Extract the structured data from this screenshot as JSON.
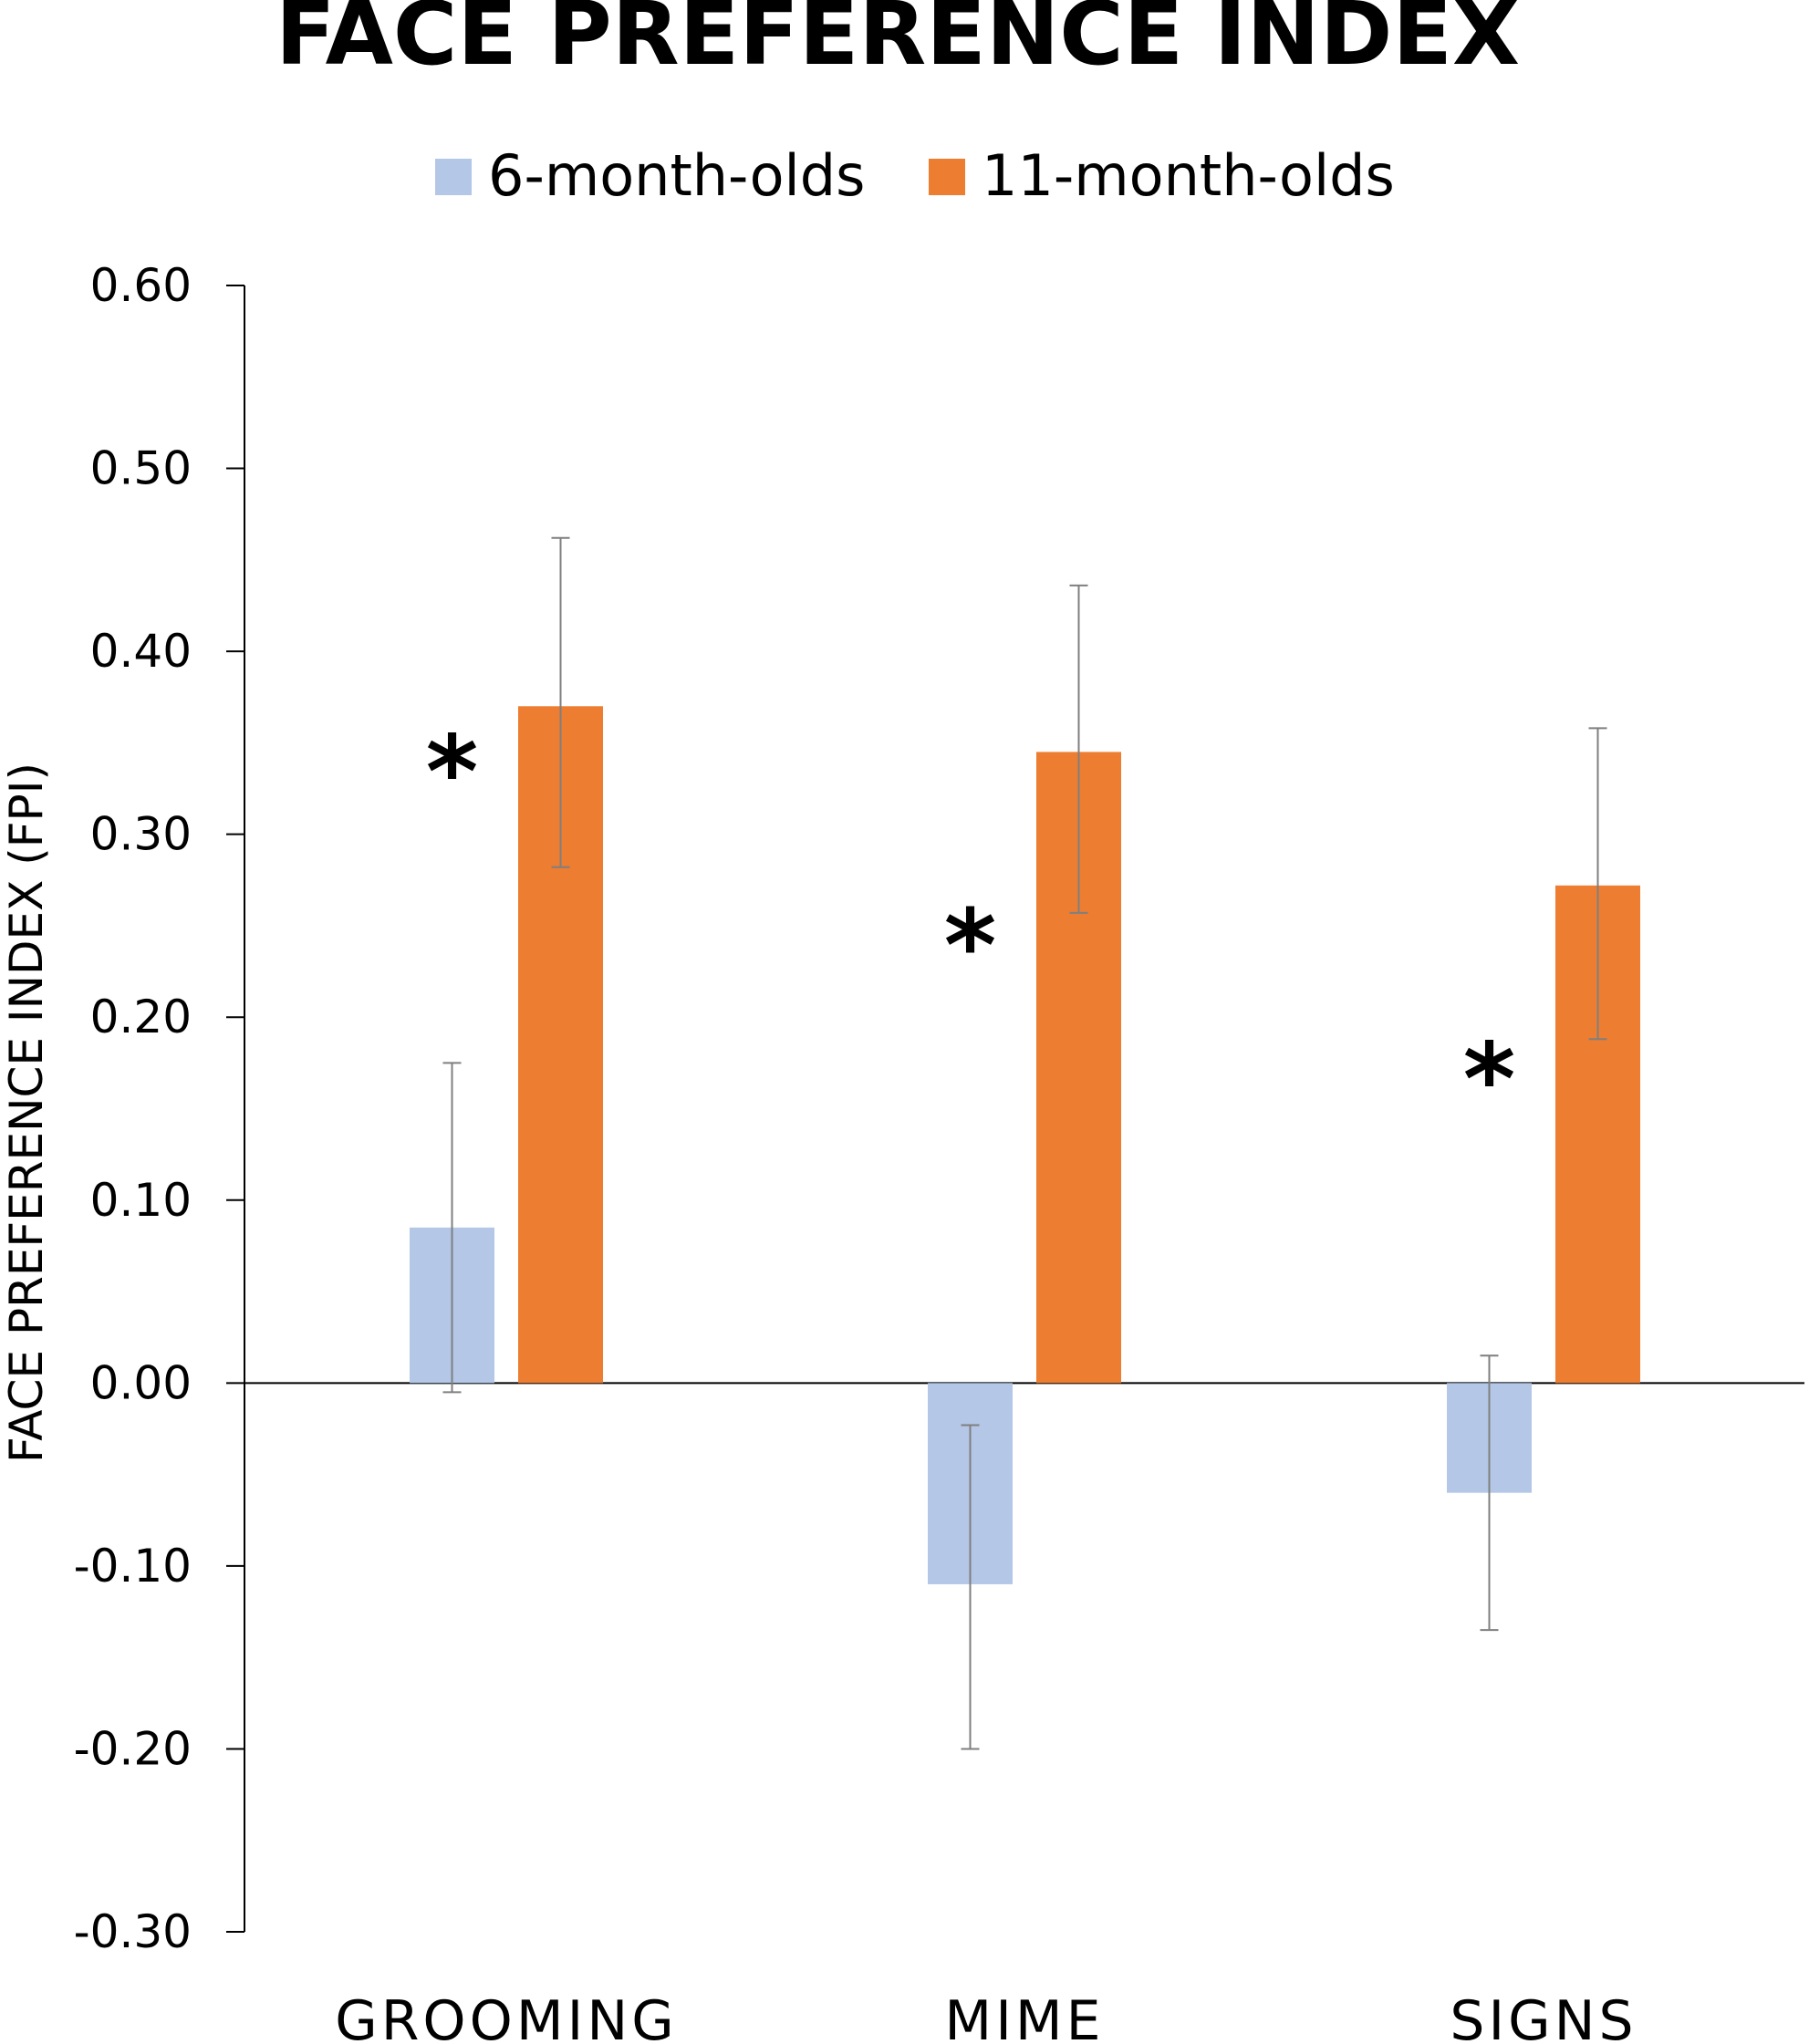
{
  "chart_data": {
    "type": "bar",
    "title": "FACE PREFERENCE INDEX",
    "xlabel": "",
    "ylabel": "FACE PREFERENCE INDEX (FPI)",
    "categories": [
      "GROOMING",
      "MIME",
      "SIGNS"
    ],
    "series": [
      {
        "name": "6-month-olds",
        "color": "#b4c7e7",
        "values": [
          0.085,
          -0.11,
          -0.06
        ],
        "error_low": [
          -0.005,
          -0.2,
          -0.135
        ],
        "error_high": [
          0.175,
          -0.023,
          0.015
        ]
      },
      {
        "name": "11-month-olds",
        "color": "#ed7d31",
        "values": [
          0.37,
          0.345,
          0.272
        ],
        "error_low": [
          0.282,
          0.257,
          0.188
        ],
        "error_high": [
          0.462,
          0.436,
          0.358
        ]
      }
    ],
    "ylim": [
      -0.3,
      0.6
    ],
    "yticks": [
      0.6,
      0.5,
      0.4,
      0.3,
      0.2,
      0.1,
      0.0,
      -0.1,
      -0.2,
      -0.3
    ],
    "ytick_labels": [
      "0.60",
      "0.50",
      "0.40",
      "0.30",
      "0.20",
      "0.10",
      "0.00",
      "-0.10",
      "-0.20",
      "-0.30"
    ],
    "significance_marks": [
      {
        "category": "GROOMING",
        "label": "*",
        "y": 0.34
      },
      {
        "category": "MIME",
        "label": "*",
        "y": 0.245
      },
      {
        "category": "SIGNS",
        "label": "*",
        "y": 0.172
      }
    ],
    "legend_position": "top-center",
    "grid": false
  }
}
